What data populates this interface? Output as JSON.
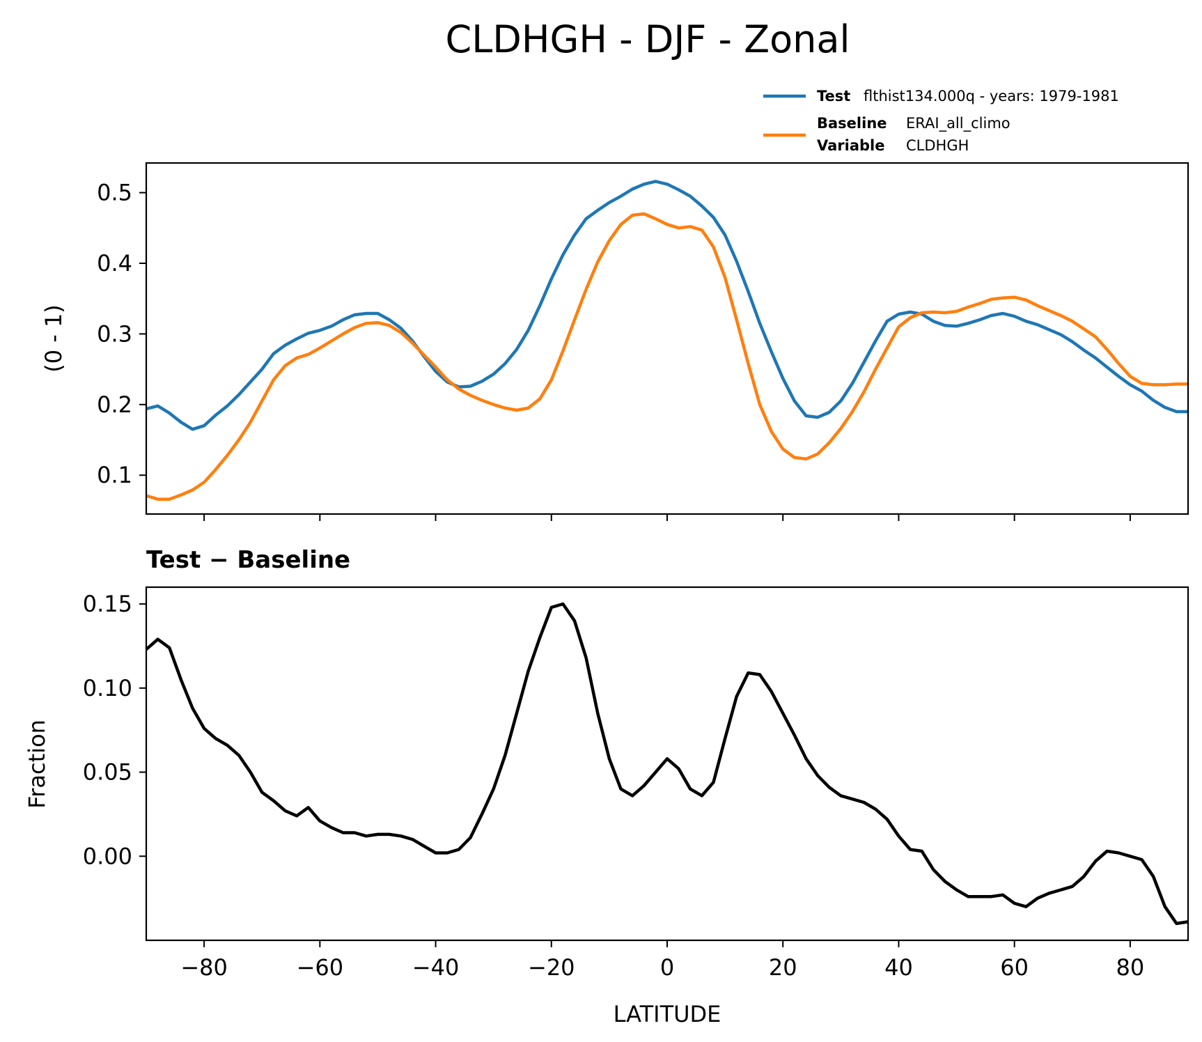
{
  "figure": {
    "title": "CLDHGH - DJF - Zonal"
  },
  "legend": {
    "placement": "upper-right",
    "test_key": "Test",
    "test_value": "flthist134.000q - years: 1979-1981",
    "baseline_key": "Baseline",
    "baseline_value": "ERAI_all_climo",
    "variable_key": "Variable",
    "variable_value": "CLDHGH"
  },
  "colors": {
    "test": "#1f77b4",
    "baseline": "#ff7f0e",
    "difference": "#000000"
  },
  "chart_data": [
    {
      "type": "line",
      "ylabel": "(0 - 1)",
      "xlim": [
        -90,
        90
      ],
      "ylim": [
        0.045,
        0.542
      ],
      "xticks": [
        -80,
        -60,
        -40,
        -20,
        0,
        20,
        40,
        60,
        80
      ],
      "yticks": [
        0.1,
        0.2,
        0.3,
        0.4,
        0.5
      ],
      "ytick_labels": [
        "0.1",
        "0.2",
        "0.3",
        "0.4",
        "0.5"
      ],
      "grid": false,
      "series": [
        {
          "name": "Test",
          "color": "#1f77b4",
          "x": [
            -90,
            -88,
            -86,
            -84,
            -82,
            -80,
            -78,
            -76,
            -74,
            -72,
            -70,
            -68,
            -66,
            -64,
            -62,
            -60,
            -58,
            -56,
            -54,
            -52,
            -50,
            -48,
            -46,
            -44,
            -42,
            -40,
            -38,
            -36,
            -34,
            -32,
            -30,
            -28,
            -26,
            -24,
            -22,
            -20,
            -18,
            -16,
            -14,
            -12,
            -10,
            -8,
            -6,
            -4,
            -2,
            0,
            2,
            4,
            6,
            8,
            10,
            12,
            14,
            16,
            18,
            20,
            22,
            24,
            26,
            28,
            30,
            32,
            34,
            36,
            38,
            40,
            42,
            44,
            46,
            48,
            50,
            52,
            54,
            56,
            58,
            60,
            62,
            64,
            66,
            68,
            70,
            72,
            74,
            76,
            78,
            80,
            82,
            84,
            86,
            88,
            90
          ],
          "y": [
            0.194,
            0.198,
            0.188,
            0.175,
            0.165,
            0.17,
            0.185,
            0.198,
            0.214,
            0.232,
            0.25,
            0.272,
            0.284,
            0.293,
            0.301,
            0.305,
            0.311,
            0.32,
            0.327,
            0.329,
            0.329,
            0.32,
            0.308,
            0.29,
            0.268,
            0.247,
            0.232,
            0.225,
            0.226,
            0.233,
            0.243,
            0.258,
            0.278,
            0.305,
            0.34,
            0.378,
            0.412,
            0.44,
            0.463,
            0.475,
            0.486,
            0.495,
            0.505,
            0.512,
            0.516,
            0.512,
            0.504,
            0.495,
            0.481,
            0.465,
            0.44,
            0.403,
            0.36,
            0.315,
            0.275,
            0.237,
            0.205,
            0.184,
            0.182,
            0.189,
            0.205,
            0.23,
            0.26,
            0.29,
            0.318,
            0.328,
            0.331,
            0.328,
            0.318,
            0.312,
            0.311,
            0.315,
            0.32,
            0.326,
            0.329,
            0.325,
            0.318,
            0.313,
            0.306,
            0.299,
            0.289,
            0.277,
            0.266,
            0.253,
            0.24,
            0.228,
            0.219,
            0.206,
            0.196,
            0.19,
            0.19
          ]
        },
        {
          "name": "Baseline",
          "color": "#ff7f0e",
          "x": [
            -90,
            -88,
            -86,
            -84,
            -82,
            -80,
            -78,
            -76,
            -74,
            -72,
            -70,
            -68,
            -66,
            -64,
            -62,
            -60,
            -58,
            -56,
            -54,
            -52,
            -50,
            -48,
            -46,
            -44,
            -42,
            -40,
            -38,
            -36,
            -34,
            -32,
            -30,
            -28,
            -26,
            -24,
            -22,
            -20,
            -18,
            -16,
            -14,
            -12,
            -10,
            -8,
            -6,
            -4,
            -2,
            0,
            2,
            4,
            6,
            8,
            10,
            12,
            14,
            16,
            18,
            20,
            22,
            24,
            26,
            28,
            30,
            32,
            34,
            36,
            38,
            40,
            42,
            44,
            46,
            48,
            50,
            52,
            54,
            56,
            58,
            60,
            62,
            64,
            66,
            68,
            70,
            72,
            74,
            76,
            78,
            80,
            82,
            84,
            86,
            88,
            90
          ],
          "y": [
            0.071,
            0.066,
            0.066,
            0.072,
            0.079,
            0.09,
            0.108,
            0.128,
            0.15,
            0.175,
            0.205,
            0.235,
            0.255,
            0.266,
            0.271,
            0.28,
            0.29,
            0.3,
            0.309,
            0.315,
            0.316,
            0.312,
            0.302,
            0.287,
            0.27,
            0.253,
            0.235,
            0.222,
            0.213,
            0.206,
            0.2,
            0.195,
            0.192,
            0.195,
            0.208,
            0.235,
            0.276,
            0.32,
            0.363,
            0.402,
            0.432,
            0.455,
            0.468,
            0.47,
            0.463,
            0.455,
            0.45,
            0.452,
            0.447,
            0.423,
            0.38,
            0.32,
            0.258,
            0.2,
            0.162,
            0.137,
            0.125,
            0.123,
            0.13,
            0.146,
            0.166,
            0.19,
            0.218,
            0.25,
            0.28,
            0.31,
            0.323,
            0.33,
            0.331,
            0.33,
            0.332,
            0.338,
            0.343,
            0.349,
            0.351,
            0.352,
            0.348,
            0.34,
            0.333,
            0.326,
            0.318,
            0.307,
            0.296,
            0.278,
            0.258,
            0.24,
            0.23,
            0.228,
            0.228,
            0.229,
            0.229
          ]
        }
      ]
    },
    {
      "type": "line",
      "subtitle": "Test − Baseline",
      "ylabel": "Fraction",
      "xlabel": "LATITUDE",
      "xlim": [
        -90,
        90
      ],
      "ylim": [
        -0.05,
        0.16
      ],
      "xticks": [
        -80,
        -60,
        -40,
        -20,
        0,
        20,
        40,
        60,
        80
      ],
      "xtick_labels": [
        "−80",
        "−60",
        "−40",
        "−20",
        "0",
        "20",
        "40",
        "60",
        "80"
      ],
      "yticks": [
        0.0,
        0.05,
        0.1,
        0.15
      ],
      "ytick_labels": [
        "0.00",
        "0.05",
        "0.10",
        "0.15"
      ],
      "grid": false,
      "series": [
        {
          "color": "#000000",
          "x": [
            -90,
            -88,
            -86,
            -84,
            -82,
            -80,
            -78,
            -76,
            -74,
            -72,
            -70,
            -68,
            -66,
            -64,
            -62,
            -60,
            -58,
            -56,
            -54,
            -52,
            -50,
            -48,
            -46,
            -44,
            -42,
            -40,
            -38,
            -36,
            -34,
            -32,
            -30,
            -28,
            -26,
            -24,
            -22,
            -20,
            -18,
            -16,
            -14,
            -12,
            -10,
            -8,
            -6,
            -4,
            -2,
            0,
            2,
            4,
            6,
            8,
            10,
            12,
            14,
            16,
            18,
            20,
            22,
            24,
            26,
            28,
            30,
            32,
            34,
            36,
            38,
            40,
            42,
            44,
            46,
            48,
            50,
            52,
            54,
            56,
            58,
            60,
            62,
            64,
            66,
            68,
            70,
            72,
            74,
            76,
            78,
            80,
            82,
            84,
            86,
            88,
            90
          ],
          "y": [
            0.123,
            0.129,
            0.124,
            0.105,
            0.088,
            0.076,
            0.07,
            0.066,
            0.06,
            0.05,
            0.038,
            0.033,
            0.027,
            0.024,
            0.029,
            0.021,
            0.017,
            0.014,
            0.014,
            0.012,
            0.013,
            0.013,
            0.012,
            0.01,
            0.006,
            0.002,
            0.002,
            0.004,
            0.011,
            0.025,
            0.04,
            0.06,
            0.085,
            0.11,
            0.13,
            0.148,
            0.15,
            0.14,
            0.118,
            0.085,
            0.058,
            0.04,
            0.036,
            0.042,
            0.05,
            0.058,
            0.052,
            0.04,
            0.036,
            0.044,
            0.07,
            0.095,
            0.109,
            0.108,
            0.098,
            0.085,
            0.072,
            0.058,
            0.048,
            0.041,
            0.036,
            0.034,
            0.032,
            0.028,
            0.022,
            0.012,
            0.004,
            0.003,
            -0.008,
            -0.015,
            -0.02,
            -0.024,
            -0.024,
            -0.024,
            -0.023,
            -0.028,
            -0.03,
            -0.025,
            -0.022,
            -0.02,
            -0.018,
            -0.012,
            -0.003,
            0.003,
            0.002,
            0.0,
            -0.002,
            -0.012,
            -0.03,
            -0.04,
            -0.039
          ]
        }
      ]
    }
  ]
}
